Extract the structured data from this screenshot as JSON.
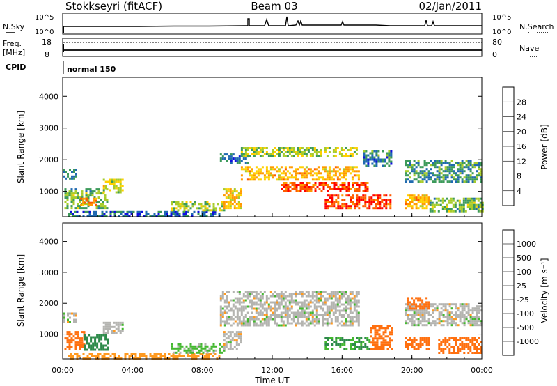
{
  "header": {
    "station": "Stokkseyri (fitACF)",
    "beam": "Beam 03",
    "date": "02/Jan/2011"
  },
  "top_panels": {
    "nsky_label": "N.Sky",
    "nsearch_label": "N.Search",
    "noise_ticks_left": [
      "10^5",
      "10^0"
    ],
    "noise_ticks_right": [
      "10^5",
      "10^0"
    ],
    "freq_label_1": "Freq.",
    "freq_label_2": "[MHz]",
    "freq_ticks": [
      "18",
      "8"
    ],
    "nave_label": "Nave",
    "nave_ticks": [
      "80",
      "0"
    ],
    "cpid_label": "CPID",
    "cpid_value": "normal 150"
  },
  "power_colorbar": {
    "label": "Power [dB]",
    "ticks": [
      "28",
      "24",
      "20",
      "16",
      "12",
      "8",
      "4"
    ],
    "colors": [
      "#ff0000",
      "#ff5a00",
      "#ff9900",
      "#ffd000",
      "#a8cc2a",
      "#3c9a5a",
      "#206ab0",
      "#1010e0"
    ]
  },
  "velocity_colorbar": {
    "label": "Velocity [m s⁻¹]",
    "ticks": [
      "1000",
      "500",
      "100",
      "25",
      "-25",
      "-100",
      "-500",
      "-1000"
    ],
    "colors": [
      "#1a3cc8",
      "#2a72b4",
      "#2e8a4a",
      "#44b830",
      "#b4b4b0",
      "#ff9a20",
      "#ff7010",
      "#ff4010",
      "#ff0000"
    ]
  },
  "chart_data": {
    "type": "heatmap",
    "xlabel": "Time UT",
    "ylabel": "Slant Range [km]",
    "x_ticks": [
      "00:00",
      "04:00",
      "08:00",
      "12:00",
      "16:00",
      "20:00",
      "00:00"
    ],
    "xlim_hours": [
      0,
      24
    ],
    "ylim_km": [
      200,
      4600
    ],
    "y_ticks": [
      1000,
      2000,
      3000,
      4000
    ],
    "power_panel": {
      "quantity": "Power [dB]",
      "echo_regions": [
        {
          "t0": 0.0,
          "t1": 0.8,
          "r0": 1400,
          "r1": 1700,
          "power": 8
        },
        {
          "t0": 0.1,
          "t1": 2.6,
          "r0": 500,
          "r1": 1100,
          "power": 12
        },
        {
          "t0": 1.0,
          "t1": 1.9,
          "r0": 600,
          "r1": 800,
          "power": 24
        },
        {
          "t0": 2.3,
          "t1": 3.4,
          "r0": 1000,
          "r1": 1400,
          "power": 16
        },
        {
          "t0": 0.3,
          "t1": 9.0,
          "r0": 220,
          "r1": 380,
          "power": 6
        },
        {
          "t0": 6.2,
          "t1": 9.3,
          "r0": 400,
          "r1": 700,
          "power": 14
        },
        {
          "t0": 9.2,
          "t1": 10.2,
          "r0": 500,
          "r1": 1100,
          "power": 18
        },
        {
          "t0": 9.0,
          "t1": 10.6,
          "r0": 1900,
          "r1": 2200,
          "power": 8
        },
        {
          "t0": 10.2,
          "t1": 17.0,
          "r0": 1400,
          "r1": 1800,
          "power": 20
        },
        {
          "t0": 10.2,
          "t1": 16.8,
          "r0": 2100,
          "r1": 2400,
          "power": 14
        },
        {
          "t0": 12.5,
          "t1": 17.5,
          "r0": 1000,
          "r1": 1300,
          "power": 27
        },
        {
          "t0": 15.0,
          "t1": 18.8,
          "r0": 500,
          "r1": 900,
          "power": 28
        },
        {
          "t0": 17.2,
          "t1": 18.8,
          "r0": 1800,
          "r1": 2300,
          "power": 8
        },
        {
          "t0": 19.6,
          "t1": 24.0,
          "r0": 1300,
          "r1": 2000,
          "power": 9
        },
        {
          "t0": 19.6,
          "t1": 21.0,
          "r0": 500,
          "r1": 900,
          "power": 20
        },
        {
          "t0": 21.0,
          "t1": 24.0,
          "r0": 400,
          "r1": 800,
          "power": 12
        }
      ]
    },
    "velocity_panel": {
      "quantity": "Velocity [m s-1]",
      "echo_regions": [
        {
          "t0": 0.0,
          "t1": 0.8,
          "r0": 1400,
          "r1": 1700,
          "velocity": 0
        },
        {
          "t0": 0.1,
          "t1": 1.2,
          "r0": 500,
          "r1": 1100,
          "velocity": -200
        },
        {
          "t0": 1.2,
          "t1": 2.6,
          "r0": 500,
          "r1": 1000,
          "velocity": 150
        },
        {
          "t0": 2.3,
          "t1": 3.4,
          "r0": 1000,
          "r1": 1400,
          "velocity": 0
        },
        {
          "t0": 0.3,
          "t1": 9.0,
          "r0": 220,
          "r1": 380,
          "velocity": -60
        },
        {
          "t0": 6.2,
          "t1": 9.3,
          "r0": 400,
          "r1": 700,
          "velocity": 40
        },
        {
          "t0": 9.2,
          "t1": 10.2,
          "r0": 500,
          "r1": 1100,
          "velocity": 0
        },
        {
          "t0": 9.0,
          "t1": 17.0,
          "r0": 1300,
          "r1": 2400,
          "velocity": 0
        },
        {
          "t0": 15.0,
          "t1": 17.6,
          "r0": 500,
          "r1": 900,
          "velocity": 100
        },
        {
          "t0": 17.6,
          "t1": 18.8,
          "r0": 500,
          "r1": 1300,
          "velocity": -300
        },
        {
          "t0": 19.6,
          "t1": 24.0,
          "r0": 1300,
          "r1": 2000,
          "velocity": 0
        },
        {
          "t0": 19.6,
          "t1": 21.0,
          "r0": 500,
          "r1": 900,
          "velocity": -150
        },
        {
          "t0": 19.7,
          "t1": 20.9,
          "r0": 1800,
          "r1": 2200,
          "velocity": -200
        },
        {
          "t0": 21.5,
          "t1": 24.0,
          "r0": 400,
          "r1": 900,
          "velocity": -250
        }
      ]
    }
  }
}
